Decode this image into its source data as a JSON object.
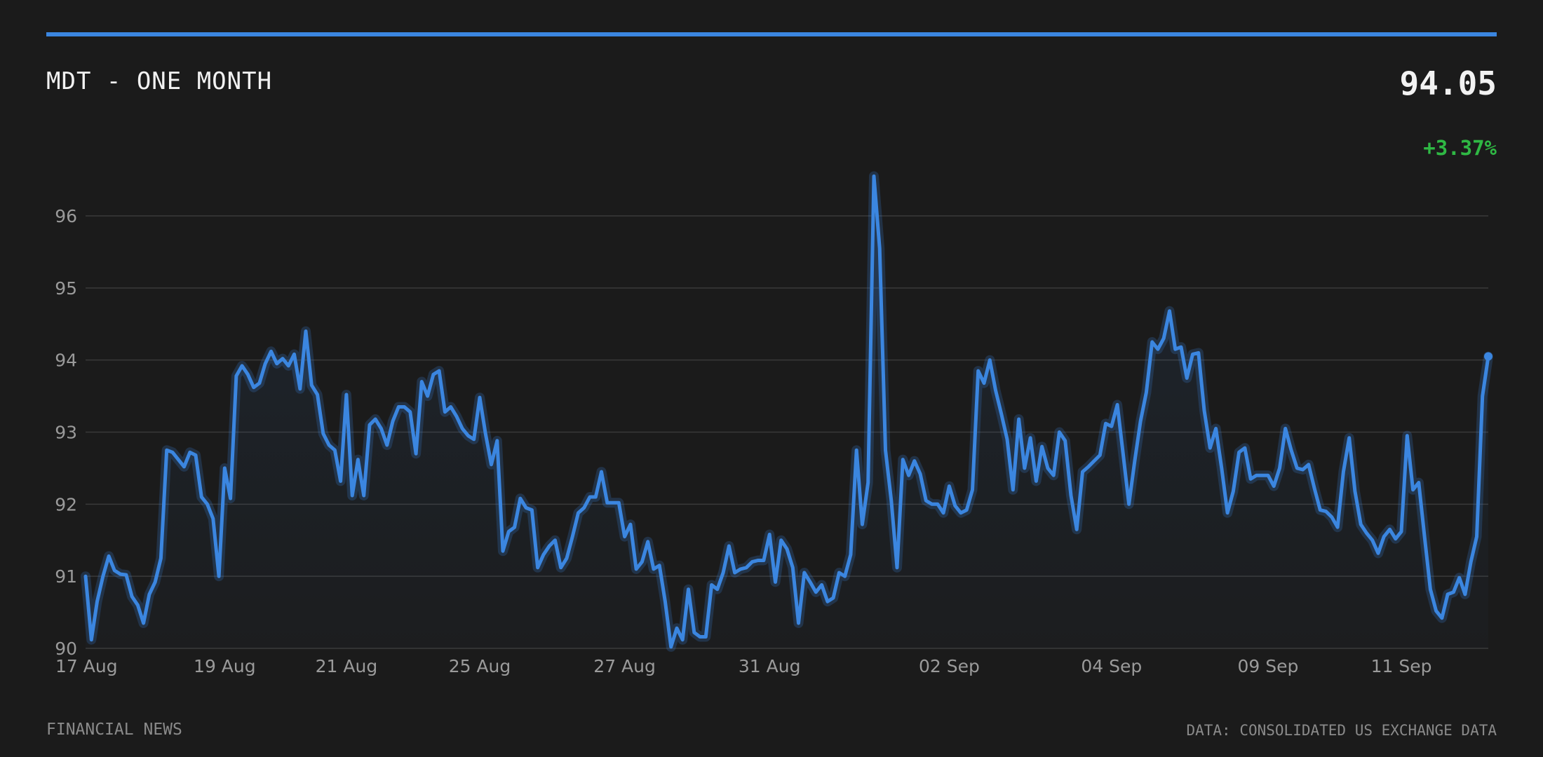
{
  "header": {
    "title": "MDT - ONE MONTH",
    "price": "94.05",
    "change": "+3.37%"
  },
  "footer": {
    "left": "FINANCIAL NEWS",
    "right": "DATA: CONSOLIDATED US EXCHANGE DATA"
  },
  "colors": {
    "background": "#1b1b1b",
    "accent": "#3b86e0",
    "positive": "#2fb844",
    "grid": "#3a3a3a",
    "tick_text": "#9a9a9a"
  },
  "chart_data": {
    "type": "line",
    "title": "MDT - ONE MONTH",
    "xlabel": "",
    "ylabel": "",
    "ylim": [
      90,
      96.7
    ],
    "yticks": [
      90,
      91,
      92,
      93,
      94,
      95,
      96
    ],
    "grid": true,
    "legend": "none",
    "xtick_labels": [
      "17 Aug",
      "19 Aug",
      "21 Aug",
      "25 Aug",
      "27 Aug",
      "31 Aug",
      "02 Sep",
      "04 Sep",
      "09 Sep",
      "11 Sep"
    ],
    "xtick_index": [
      0,
      24,
      45,
      68,
      93,
      118,
      149,
      177,
      204,
      227
    ],
    "series": [
      {
        "values": [
          91.0,
          90.12,
          90.65,
          91.0,
          91.28,
          91.08,
          91.03,
          91.02,
          90.72,
          90.6,
          90.35,
          90.75,
          90.92,
          91.25,
          92.75,
          92.72,
          92.62,
          92.52,
          92.72,
          92.68,
          92.1,
          92.0,
          91.8,
          91.0,
          92.5,
          92.08,
          93.78,
          93.92,
          93.8,
          93.62,
          93.68,
          93.95,
          94.12,
          93.95,
          94.02,
          93.92,
          94.08,
          93.6,
          94.4,
          93.65,
          93.52,
          92.98,
          92.82,
          92.75,
          92.32,
          93.52,
          92.12,
          92.62,
          92.12,
          93.1,
          93.18,
          93.05,
          92.82,
          93.15,
          93.35,
          93.35,
          93.28,
          92.7,
          93.7,
          93.5,
          93.8,
          93.85,
          93.28,
          93.35,
          93.22,
          93.05,
          92.95,
          92.9,
          93.48,
          92.98,
          92.55,
          92.88,
          91.35,
          91.62,
          91.68,
          92.08,
          91.95,
          91.92,
          91.12,
          91.3,
          91.42,
          91.5,
          91.12,
          91.25,
          91.55,
          91.88,
          91.95,
          92.1,
          92.1,
          92.45,
          92.02,
          92.02,
          92.02,
          91.55,
          91.72,
          91.1,
          91.2,
          91.48,
          91.1,
          91.15,
          90.65,
          90.02,
          90.28,
          90.12,
          90.82,
          90.22,
          90.16,
          90.16,
          90.88,
          90.82,
          91.05,
          91.42,
          91.05,
          91.1,
          91.12,
          91.2,
          91.22,
          91.22,
          91.58,
          90.92,
          91.5,
          91.38,
          91.12,
          90.35,
          91.05,
          90.92,
          90.78,
          90.88,
          90.65,
          90.7,
          91.05,
          91.0,
          91.3,
          92.75,
          91.72,
          92.3,
          96.55,
          95.55,
          92.75,
          92.05,
          91.12,
          92.62,
          92.4,
          92.6,
          92.42,
          92.05,
          92.0,
          92.0,
          91.88,
          92.25,
          91.98,
          91.88,
          91.92,
          92.2,
          93.85,
          93.68,
          94.0,
          93.58,
          93.25,
          92.9,
          92.2,
          93.18,
          92.5,
          92.92,
          92.32,
          92.8,
          92.5,
          92.4,
          93.0,
          92.88,
          92.12,
          91.65,
          92.45,
          92.52,
          92.6,
          92.68,
          93.12,
          93.08,
          93.38,
          92.7,
          92.0,
          92.6,
          93.15,
          93.55,
          94.25,
          94.15,
          94.3,
          94.68,
          94.15,
          94.18,
          93.75,
          94.08,
          94.1,
          93.3,
          92.78,
          93.05,
          92.5,
          91.88,
          92.18,
          92.72,
          92.78,
          92.35,
          92.4,
          92.4,
          92.4,
          92.25,
          92.5,
          93.05,
          92.75,
          92.5,
          92.48,
          92.55,
          92.22,
          91.92,
          91.9,
          91.82,
          91.68,
          92.45,
          92.92,
          92.18,
          91.72,
          91.6,
          91.5,
          91.32,
          91.55,
          91.65,
          91.52,
          91.62,
          92.95,
          92.2,
          92.3,
          91.55,
          90.82,
          90.52,
          90.42,
          90.75,
          90.78,
          90.98,
          90.75,
          91.2,
          91.55,
          93.5,
          94.05
        ]
      }
    ]
  }
}
